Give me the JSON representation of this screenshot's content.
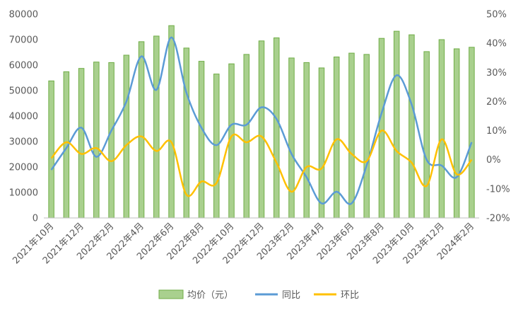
{
  "chart_data": {
    "type": "bar",
    "categories": [
      "2021年10月",
      "2021年11月",
      "2021年12月",
      "2022年1月",
      "2022年2月",
      "2022年3月",
      "2022年4月",
      "2022年5月",
      "2022年6月",
      "2022年7月",
      "2022年8月",
      "2022年9月",
      "2022年10月",
      "2022年11月",
      "2022年12月",
      "2023年1月",
      "2023年2月",
      "2023年3月",
      "2023年4月",
      "2023年5月",
      "2023年6月",
      "2023年7月",
      "2023年8月",
      "2023年9月",
      "2023年10月",
      "2023年11月",
      "2023年12月",
      "2024年1月",
      "2024年2月"
    ],
    "tick_labels": [
      "2021年10月",
      "2021年12月",
      "2022年2月",
      "2022年4月",
      "2022年6月",
      "2022年8月",
      "2022年10月",
      "2022年12月",
      "2023年2月",
      "2023年4月",
      "2023年6月",
      "2023年8月",
      "2023年10月",
      "2023年12月",
      "2024年2月"
    ],
    "series": [
      {
        "name": "均价（元）",
        "axis": "left",
        "type": "bar",
        "color": "#a9d08e",
        "stroke": "#70ad47",
        "values": [
          53800,
          57400,
          58700,
          61200,
          61000,
          63900,
          69200,
          71400,
          75500,
          66700,
          61500,
          56500,
          60500,
          64200,
          69500,
          70700,
          62800,
          61000,
          58900,
          63200,
          64700,
          64200,
          70500,
          73300,
          71900,
          65300,
          70000,
          66400,
          67000
        ]
      },
      {
        "name": "同比",
        "axis": "right",
        "type": "line",
        "color": "#5b9bd5",
        "values": [
          -3.5,
          4,
          11,
          1,
          10,
          20,
          35.5,
          24,
          42,
          23,
          11,
          5,
          12,
          12,
          18,
          14,
          2,
          -6,
          -15,
          -11,
          -15,
          -2,
          16,
          29,
          19,
          0,
          -2,
          -6,
          6
        ]
      },
      {
        "name": "环比",
        "axis": "right",
        "type": "line",
        "color": "#ffc000",
        "values": [
          0.5,
          6,
          2,
          4,
          -0.5,
          5,
          8,
          3,
          6,
          -12,
          -7.5,
          -8,
          8,
          6,
          8,
          -1,
          -11,
          -2.5,
          -3,
          7,
          2,
          -0.5,
          10,
          3,
          -1,
          -9,
          7,
          -5,
          0
        ]
      }
    ],
    "yaxis_left": {
      "min": 0,
      "max": 80000,
      "step": 10000,
      "labels": [
        "0",
        "10000",
        "20000",
        "30000",
        "40000",
        "50000",
        "60000",
        "70000",
        "80000"
      ]
    },
    "yaxis_right": {
      "min": -20,
      "max": 50,
      "step": 10,
      "labels": [
        "-20%",
        "-10%",
        "0%",
        "10%",
        "20%",
        "30%",
        "40%",
        "50%"
      ]
    },
    "grid": false,
    "legend_position": "bottom"
  }
}
